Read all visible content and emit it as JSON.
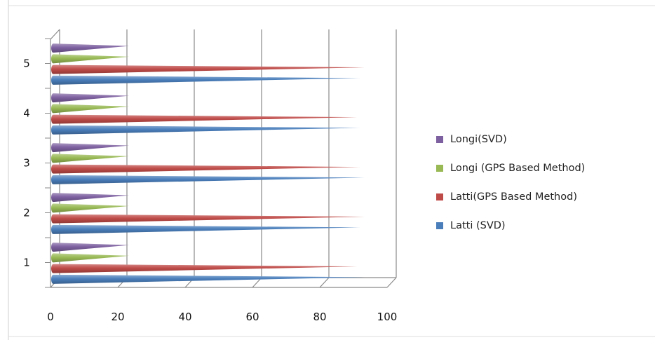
{
  "chart_data": {
    "type": "bar",
    "orientation": "horizontal",
    "style": "3d-cone",
    "categories": [
      "1",
      "2",
      "3",
      "4",
      "5"
    ],
    "series": [
      {
        "name": "Latti (SVD)",
        "color": "#4a7ebb",
        "values": [
          92,
          91,
          92,
          91,
          91
        ]
      },
      {
        "name": "Latti(GPS Based Method)",
        "color": "#be4b48",
        "values": [
          90,
          92,
          91,
          90,
          92
        ]
      },
      {
        "name": "Longi (GPS Based Method)",
        "color": "#98b954",
        "values": [
          22,
          22,
          22,
          22,
          22
        ]
      },
      {
        "name": "Longi(SVD)",
        "color": "#7d60a0",
        "values": [
          22,
          22,
          22,
          22,
          22
        ]
      }
    ],
    "xlim": [
      0,
      100
    ],
    "x_ticks": [
      "0",
      "20",
      "40",
      "60",
      "80",
      "100"
    ],
    "grid": true,
    "legend_position": "right",
    "legend_order": [
      "Longi(SVD)",
      "Longi (GPS Based Method)",
      "Latti(GPS Based Method)",
      "Latti (SVD)"
    ],
    "title": "",
    "xlabel": "",
    "ylabel": ""
  }
}
